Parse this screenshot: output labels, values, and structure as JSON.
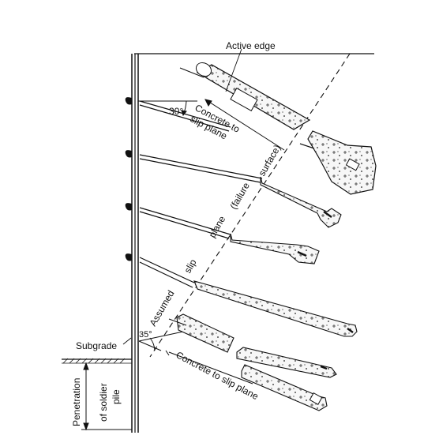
{
  "labels": {
    "active_edge": "Active edge",
    "angle_top": "30°",
    "angle_bottom": "35°",
    "concrete_top_line1": "Concrete to",
    "concrete_top_line2": "slip plane",
    "concrete_bottom": "Concrete to slip plane",
    "assumed": "Assumed",
    "slip": "slip",
    "plane": "plane",
    "failure": "(failure",
    "surface": "surface)",
    "subgrade": "Subgrade",
    "penetration": "Penetration",
    "of_soldier_pile": "of soldier",
    "pile": "pile"
  },
  "colors": {
    "ink": "#111111",
    "paper": "#ffffff",
    "concrete": "#f4f4f4"
  }
}
